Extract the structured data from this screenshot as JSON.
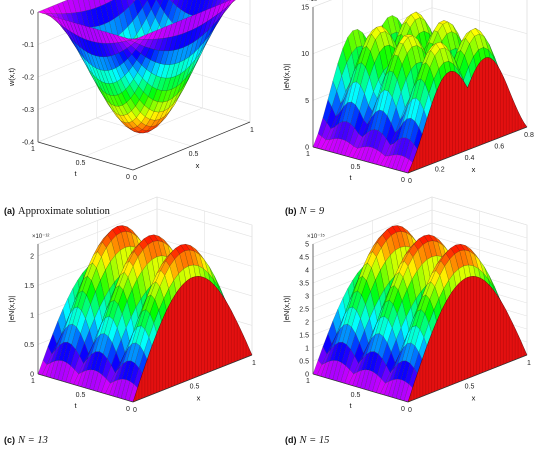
{
  "captions": [
    {
      "letter": "(a)",
      "text": "Approximate solution"
    },
    {
      "letter": "(b)",
      "text": "N = 9"
    },
    {
      "letter": "(c)",
      "text": "N = 13"
    },
    {
      "letter": "(d)",
      "text": "N = 15"
    }
  ],
  "chart_data": [
    {
      "type": "surface",
      "title": "",
      "xlabel": "x",
      "ylabel": "t",
      "zlabel": "w(x,t)",
      "xlim": [
        0,
        1
      ],
      "ylim": [
        0,
        1
      ],
      "zlim": [
        -0.4,
        0
      ],
      "xticks": [
        "0",
        "0.5",
        "1"
      ],
      "yticks": [
        "0",
        "0.5",
        "1"
      ],
      "zticks": [
        "-0.4",
        "-0.3",
        "-0.2",
        "-0.1",
        "0"
      ],
      "multiplier": "",
      "function": "-0.4*sin(pi*x)*sin(pi*t)",
      "z_min": -0.4,
      "colormap": "hsv",
      "grid": true
    },
    {
      "type": "surface",
      "title": "",
      "xlabel": "x",
      "ylabel": "t",
      "zlabel": "|eN(x,t)|",
      "xlim": [
        0,
        0.8
      ],
      "ylim": [
        0,
        1
      ],
      "zlim": [
        0,
        15
      ],
      "xticks": [
        "0",
        "0.2",
        "0.4",
        "0.6",
        "0.8"
      ],
      "yticks": [
        "0",
        "0.5",
        "1"
      ],
      "zticks": [
        "0",
        "5",
        "10",
        "15"
      ],
      "multiplier": "×10⁻⁹",
      "z_max": 14.5,
      "colormap": "hsv",
      "grid": true
    },
    {
      "type": "surface",
      "title": "",
      "xlabel": "x",
      "ylabel": "t",
      "zlabel": "|eN(x,t)|",
      "xlim": [
        0,
        1
      ],
      "ylim": [
        0,
        1
      ],
      "zlim": [
        0,
        2.2
      ],
      "xticks": [
        "0",
        "0.5",
        "1"
      ],
      "yticks": [
        "0",
        "0.5",
        "1"
      ],
      "zticks": [
        "0",
        "0.5",
        "1",
        "1.5",
        "2"
      ],
      "multiplier": "×10⁻¹²",
      "z_max": 2.2,
      "colormap": "hsv",
      "grid": true
    },
    {
      "type": "surface",
      "title": "",
      "xlabel": "x",
      "ylabel": "t",
      "zlabel": "|eN(x,t)|",
      "xlim": [
        0,
        1
      ],
      "ylim": [
        0,
        1
      ],
      "zlim": [
        0,
        5
      ],
      "xticks": [
        "0",
        "0.5",
        "1"
      ],
      "yticks": [
        "0",
        "0.5",
        "1"
      ],
      "zticks": [
        "0",
        "0.5",
        "1",
        "1.5",
        "2",
        "2.5",
        "3",
        "3.5",
        "4",
        "4.5",
        "5"
      ],
      "multiplier": "×10⁻¹⁵",
      "z_max": 5,
      "colormap": "hsv",
      "grid": true
    }
  ]
}
